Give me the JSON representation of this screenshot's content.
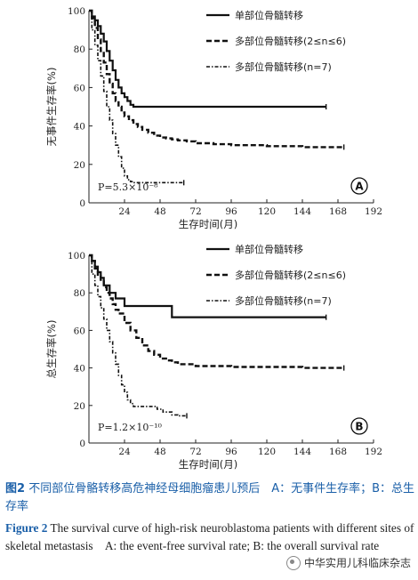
{
  "chart_data": [
    {
      "type": "line",
      "panel_label": "A",
      "ylabel": "无事件生存率(%)",
      "xlabel": "生存时间(月)",
      "p_value": "P=5.3×10⁻⁸",
      "xlim": [
        0,
        192
      ],
      "ylim": [
        0,
        100
      ],
      "x_ticks": [
        "24",
        "48",
        "72",
        "96",
        "120",
        "144",
        "168",
        "192"
      ],
      "y_ticks": [
        "0",
        "20",
        "40",
        "60",
        "80",
        "100"
      ],
      "legend_position": "top-right",
      "series": [
        {
          "name": "单部位骨髓转移",
          "style": "solid",
          "x": [
            0,
            2,
            4,
            6,
            8,
            10,
            12,
            14,
            16,
            18,
            20,
            22,
            24,
            26,
            28,
            30,
            32,
            160
          ],
          "y": [
            100,
            97,
            95,
            92,
            88,
            84,
            79,
            74,
            69,
            64,
            60,
            57,
            55,
            53,
            51,
            50,
            50,
            50
          ]
        },
        {
          "name": "多部位骨髓转移(2≤n≤6)",
          "style": "dashed",
          "x": [
            0,
            2,
            4,
            6,
            8,
            10,
            12,
            14,
            16,
            18,
            20,
            22,
            24,
            27,
            30,
            33,
            36,
            40,
            44,
            48,
            52,
            56,
            60,
            66,
            72,
            84,
            96,
            120,
            144,
            172
          ],
          "y": [
            100,
            96,
            91,
            85,
            79,
            73,
            67,
            62,
            57,
            53,
            50,
            47,
            45,
            43,
            41,
            39.5,
            38,
            36.5,
            35,
            34,
            33.5,
            33,
            32.5,
            32,
            31,
            30.5,
            30,
            29.5,
            29,
            29
          ]
        },
        {
          "name": "多部位骨髓转移(n=7)",
          "style": "dashdot",
          "x": [
            0,
            2,
            4,
            6,
            8,
            10,
            12,
            14,
            16,
            18,
            20,
            22,
            24,
            26,
            28,
            30,
            34,
            40,
            48,
            56,
            64
          ],
          "y": [
            100,
            90,
            82,
            74,
            66,
            58,
            50,
            43,
            36,
            30,
            24,
            18,
            14,
            12,
            11,
            10.5,
            10.5,
            10.5,
            10.5,
            10.5,
            10.5
          ]
        }
      ]
    },
    {
      "type": "line",
      "panel_label": "B",
      "ylabel": "总生存率(%)",
      "xlabel": "生存时间(月)",
      "p_value": "P=1.2×10⁻¹⁰",
      "xlim": [
        0,
        192
      ],
      "ylim": [
        0,
        100
      ],
      "x_ticks": [
        "24",
        "48",
        "72",
        "96",
        "120",
        "144",
        "168",
        "192"
      ],
      "y_ticks": [
        "0",
        "20",
        "40",
        "60",
        "80",
        "100"
      ],
      "legend_position": "top-right",
      "series": [
        {
          "name": "单部位骨髓转移",
          "style": "solid",
          "x": [
            0,
            2,
            4,
            6,
            8,
            10,
            14,
            18,
            24,
            30,
            36,
            42,
            48,
            54,
            56,
            60,
            160
          ],
          "y": [
            100,
            97,
            94,
            91,
            88,
            84,
            80,
            77,
            73,
            73,
            73,
            73,
            73,
            73,
            67,
            67,
            67
          ]
        },
        {
          "name": "多部位骨髓转移(2≤n≤6)",
          "style": "dashed",
          "x": [
            0,
            2,
            4,
            6,
            8,
            10,
            12,
            14,
            16,
            18,
            20,
            24,
            28,
            32,
            36,
            40,
            44,
            48,
            52,
            56,
            60,
            66,
            72,
            84,
            96,
            120,
            144,
            172
          ],
          "y": [
            100,
            97,
            93,
            89,
            86,
            83,
            80,
            77,
            74,
            71,
            69,
            64,
            60,
            56,
            52,
            49,
            47,
            45,
            44,
            43,
            42,
            42,
            41,
            41,
            40.5,
            40.5,
            40,
            40
          ]
        },
        {
          "name": "多部位骨髓转移(n=7)",
          "style": "dashdot",
          "x": [
            0,
            2,
            4,
            6,
            8,
            10,
            12,
            14,
            16,
            18,
            20,
            22,
            24,
            26,
            28,
            30,
            34,
            38,
            42,
            46,
            50,
            56,
            60,
            66
          ],
          "y": [
            100,
            90,
            84,
            78,
            72,
            66,
            60,
            54,
            48,
            42,
            36,
            31,
            27,
            23,
            21,
            19.5,
            19.5,
            19.5,
            19.5,
            18,
            16.5,
            15,
            14.5,
            14.5
          ]
        }
      ]
    }
  ],
  "caption": {
    "cn_label": "图2",
    "cn_text": "不同部位骨骼转移高危神经母细胞瘤患儿预后　A：无事件生存率；B：总生存率",
    "en_label": "Figure 2",
    "en_text": "The survival curve of high-risk neuroblastoma patients with different sites of skeletal metastasis　A: the event-free survival rate; B: the overall survival rate"
  },
  "watermark": "中华实用儿科临床杂志"
}
